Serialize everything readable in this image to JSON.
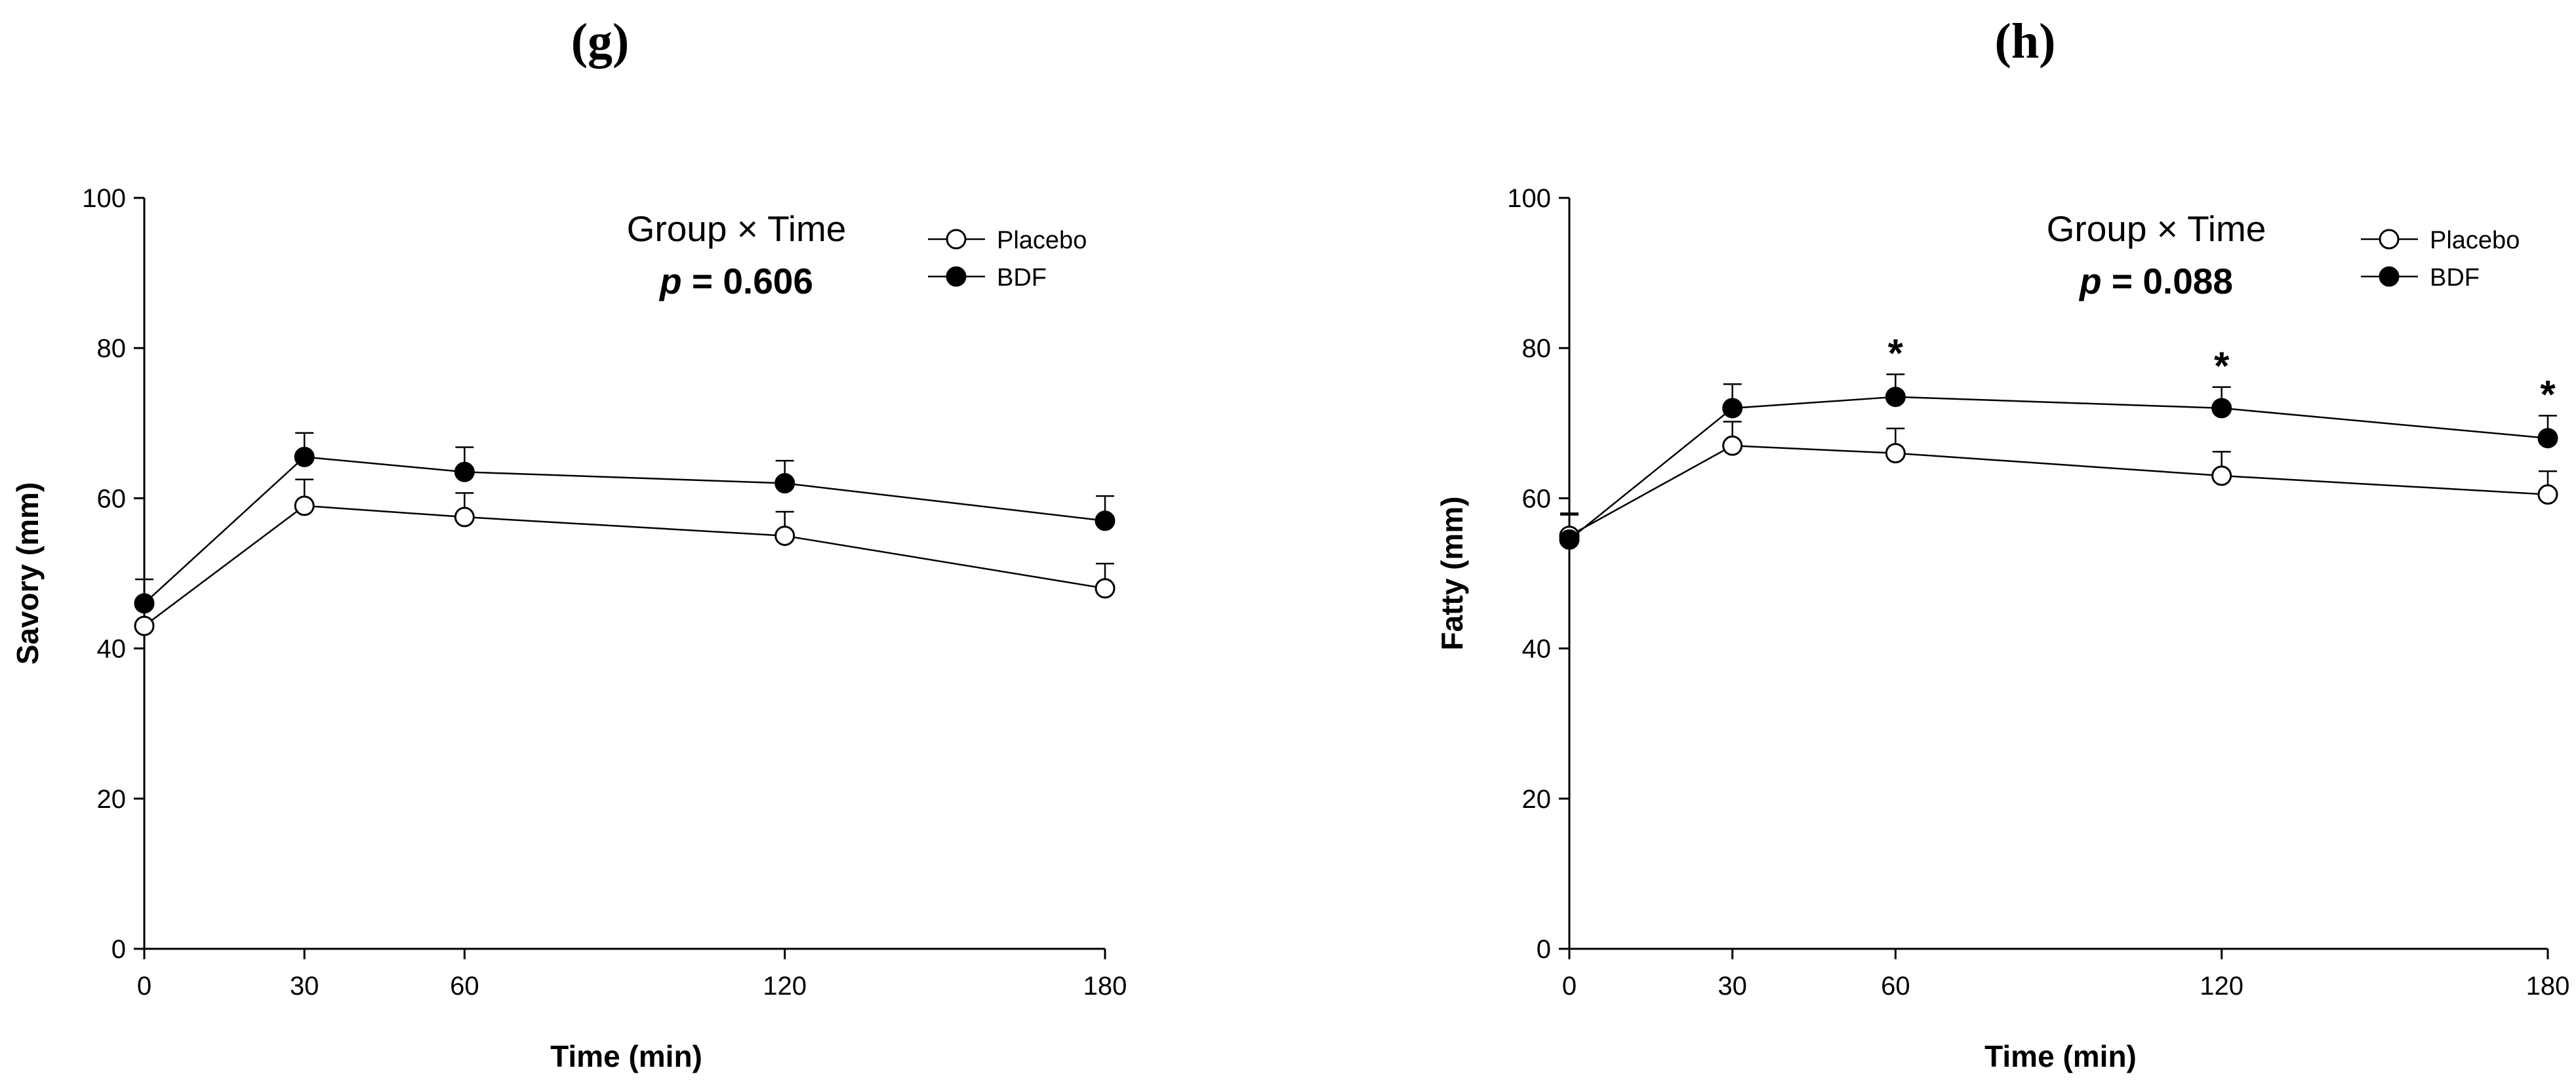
{
  "chart_data": [
    {
      "type": "line",
      "panel_label": "(g)",
      "title": "",
      "xlabel": "Time (min)",
      "ylabel": "Savory (mm)",
      "x": [
        0,
        30,
        60,
        120,
        180
      ],
      "x_ticks": [
        "0",
        "30",
        "60",
        "120",
        "180"
      ],
      "xlim": [
        0,
        180
      ],
      "ylim": [
        0,
        100
      ],
      "y_ticks": [
        "0",
        "20",
        "40",
        "60",
        "80",
        "100"
      ],
      "grid": false,
      "legend_position": "top-right",
      "annotation": {
        "line1": "Group × Time",
        "p_symbol": "p",
        "p_value": " = 0.606"
      },
      "series": [
        {
          "name": "Placebo",
          "marker": "open-circle",
          "values": [
            43,
            59,
            57.5,
            55,
            48
          ],
          "error": [
            3,
            3.5,
            3.2,
            3.2,
            3.3
          ]
        },
        {
          "name": "BDF",
          "marker": "filled-circle",
          "values": [
            46,
            65.5,
            63.5,
            62,
            57
          ],
          "error": [
            3.2,
            3.2,
            3.3,
            3,
            3.3
          ]
        }
      ],
      "significance": []
    },
    {
      "type": "line",
      "panel_label": "(h)",
      "title": "",
      "xlabel": "Time (min)",
      "ylabel": "Fatty (mm)",
      "x": [
        0,
        30,
        60,
        120,
        180
      ],
      "x_ticks": [
        "0",
        "30",
        "60",
        "120",
        "180"
      ],
      "xlim": [
        0,
        180
      ],
      "ylim": [
        0,
        100
      ],
      "y_ticks": [
        "0",
        "20",
        "40",
        "60",
        "80",
        "100"
      ],
      "grid": false,
      "legend_position": "top-right",
      "annotation": {
        "line1": "Group × Time",
        "p_symbol": "p",
        "p_value": " = 0.088"
      },
      "series": [
        {
          "name": "Placebo",
          "marker": "open-circle",
          "values": [
            55,
            67,
            66,
            63,
            60.5
          ],
          "error": [
            3,
            3.2,
            3.3,
            3.2,
            3.1
          ]
        },
        {
          "name": "BDF",
          "marker": "filled-circle",
          "values": [
            54.5,
            72,
            73.5,
            72,
            68
          ],
          "error": [
            3.3,
            3.2,
            3,
            2.8,
            3
          ]
        }
      ],
      "significance": [
        {
          "x": 60,
          "label": "*"
        },
        {
          "x": 120,
          "label": "*"
        },
        {
          "x": 180,
          "label": "*"
        }
      ]
    }
  ]
}
